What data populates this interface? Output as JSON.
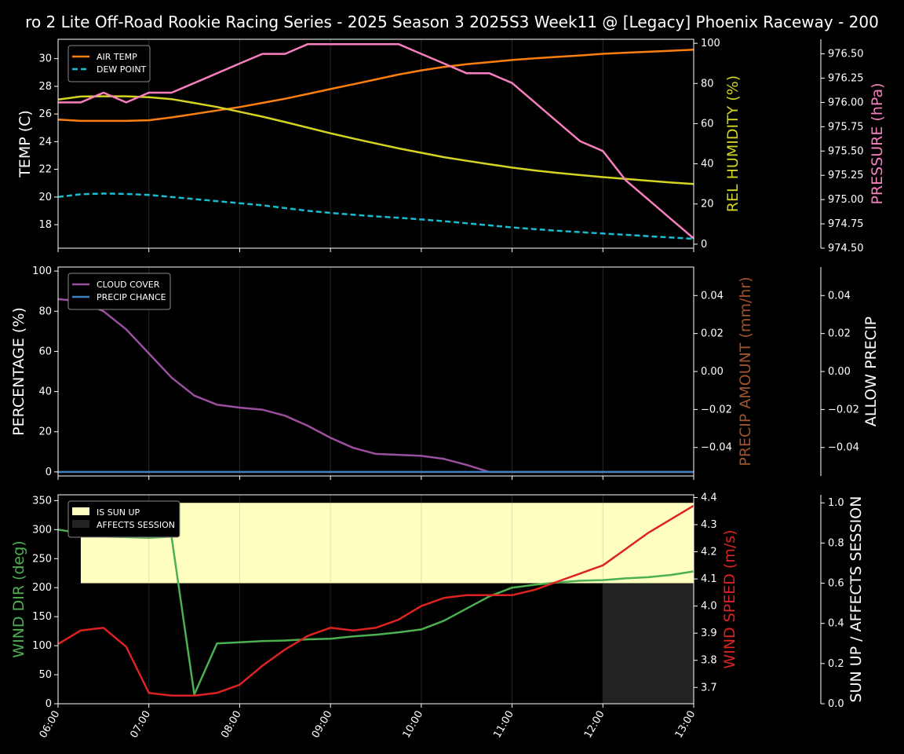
{
  "title": "ro 2 Lite Off-Road Rookie Racing Series - 2025 Season 3 2025S3 Week11 @ [Legacy] Phoenix Raceway - 200",
  "colors": {
    "air_temp": "#ff7f0e",
    "dew_point": "#17becf",
    "humidity": "#d4d422",
    "pressure": "#f77fbe",
    "cloud": "#9b4f9f",
    "precip_chance": "#3f7fbf",
    "precip_amount": "#a0522d",
    "wind_dir": "#4caf50",
    "wind_speed": "#dd2222",
    "sun_up": "#ffffc0",
    "affects": "#222222"
  },
  "x_ticks": [
    "06:00",
    "07:00",
    "08:00",
    "09:00",
    "10:00",
    "11:00",
    "12:00",
    "13:00"
  ],
  "chart_data": [
    {
      "type": "line",
      "name": "temperature_humidity_pressure",
      "x": [
        "06:00",
        "06:15",
        "06:30",
        "06:45",
        "07:00",
        "07:15",
        "07:30",
        "07:45",
        "08:00",
        "08:15",
        "08:30",
        "08:45",
        "09:00",
        "09:15",
        "09:30",
        "09:45",
        "10:00",
        "10:15",
        "10:30",
        "10:45",
        "11:00",
        "11:15",
        "11:30",
        "11:45",
        "12:00",
        "12:15",
        "12:30",
        "12:45",
        "13:00"
      ],
      "series": [
        {
          "name": "AIR TEMP",
          "axis": "left",
          "values": [
            25.6,
            25.5,
            25.5,
            25.5,
            25.55,
            25.75,
            26.0,
            26.25,
            26.5,
            26.8,
            27.1,
            27.45,
            27.8,
            28.15,
            28.5,
            28.85,
            29.15,
            29.4,
            29.6,
            29.75,
            29.9,
            30.02,
            30.13,
            30.23,
            30.35,
            30.43,
            30.5,
            30.57,
            30.65
          ]
        },
        {
          "name": "DEW POINT",
          "axis": "left",
          "values": [
            20.0,
            20.2,
            20.25,
            20.22,
            20.15,
            20.0,
            19.85,
            19.7,
            19.55,
            19.4,
            19.2,
            19.0,
            18.85,
            18.72,
            18.6,
            18.5,
            18.38,
            18.25,
            18.1,
            17.95,
            17.8,
            17.68,
            17.56,
            17.46,
            17.36,
            17.27,
            17.17,
            17.07,
            16.98
          ]
        },
        {
          "name": "REL HUMIDITY",
          "axis": "right1",
          "values": [
            72,
            73.5,
            73.6,
            73.6,
            73.2,
            72.2,
            70.3,
            68.3,
            65.9,
            63.5,
            60.8,
            58.0,
            55.2,
            52.6,
            50.1,
            47.7,
            45.5,
            43.3,
            41.5,
            39.8,
            38.1,
            36.7,
            35.5,
            34.4,
            33.4,
            32.5,
            31.6,
            30.7,
            30.0
          ]
        },
        {
          "name": "PRESSURE",
          "axis": "right2",
          "values": [
            976.0,
            976.0,
            976.1,
            976.0,
            976.1,
            976.1,
            976.2,
            976.3,
            976.4,
            976.5,
            976.5,
            976.6,
            976.6,
            976.6,
            976.6,
            976.6,
            976.5,
            976.4,
            976.3,
            976.3,
            976.2,
            976.0,
            975.8,
            975.6,
            975.5,
            975.2,
            975.0,
            974.8,
            974.6
          ]
        }
      ],
      "ylabel": "TEMP (C)",
      "ylim": [
        16.3,
        31.4
      ],
      "yticks": [
        18,
        20,
        22,
        24,
        26,
        28,
        30
      ],
      "y2label": "REL HUMIDITY (%)",
      "y2lim": [
        -2,
        102
      ],
      "y2ticks": [
        0,
        20,
        40,
        60,
        80,
        100
      ],
      "y3label": "PRESSURE (hPa)",
      "y3lim": [
        974.5,
        976.65
      ],
      "y3ticks": [
        "974.50",
        "974.75",
        "975.00",
        "975.25",
        "975.50",
        "975.75",
        "976.00",
        "976.25",
        "976.50"
      ],
      "legend": [
        "AIR TEMP",
        "DEW POINT"
      ],
      "legend_position": "top-left",
      "grid": "vertical"
    },
    {
      "type": "line",
      "name": "cloud_precip",
      "x": [
        "06:00",
        "06:15",
        "06:30",
        "06:45",
        "07:00",
        "07:15",
        "07:30",
        "07:45",
        "08:00",
        "08:15",
        "08:30",
        "08:45",
        "09:00",
        "09:15",
        "09:30",
        "09:45",
        "10:00",
        "10:15",
        "10:30",
        "10:45",
        "11:00",
        "11:15",
        "11:30",
        "11:45",
        "12:00",
        "12:15",
        "12:30",
        "12:45",
        "13:00"
      ],
      "series": [
        {
          "name": "CLOUD COVER",
          "values": [
            86,
            85,
            80,
            71,
            59,
            47,
            38,
            33.5,
            32,
            31,
            28,
            23,
            17,
            12,
            9,
            8.5,
            8,
            6.5,
            3.5,
            0,
            0,
            0,
            0,
            0,
            0,
            0,
            0,
            0,
            0
          ]
        },
        {
          "name": "PRECIP CHANCE",
          "values": [
            0,
            0,
            0,
            0,
            0,
            0,
            0,
            0,
            0,
            0,
            0,
            0,
            0,
            0,
            0,
            0,
            0,
            0,
            0,
            0,
            0,
            0,
            0,
            0,
            0,
            0,
            0,
            0,
            0
          ]
        }
      ],
      "ylabel": "PERCENTAGE (%)",
      "ylim": [
        -2,
        102
      ],
      "yticks": [
        0,
        20,
        40,
        60,
        80,
        100
      ],
      "y2label": "PRECIP AMOUNT (mm/hr)",
      "y2lim": [
        -0.055,
        0.055
      ],
      "y2ticks": [
        "−0.04",
        "−0.02",
        "0.00",
        "0.02",
        "0.04"
      ],
      "y3label": "ALLOW PRECIP",
      "y3lim": [
        -0.055,
        0.055
      ],
      "y3ticks": [
        "−0.04",
        "−0.02",
        "0.00",
        "0.02",
        "0.04"
      ],
      "legend": [
        "CLOUD COVER",
        "PRECIP CHANCE"
      ],
      "legend_position": "top-left",
      "grid": "vertical"
    },
    {
      "type": "line",
      "name": "wind_sun",
      "x": [
        "06:00",
        "06:15",
        "06:30",
        "06:45",
        "07:00",
        "07:15",
        "07:30",
        "07:45",
        "08:00",
        "08:15",
        "08:30",
        "08:45",
        "09:00",
        "09:15",
        "09:30",
        "09:45",
        "10:00",
        "10:15",
        "10:30",
        "10:45",
        "11:00",
        "11:15",
        "11:30",
        "11:45",
        "12:00",
        "12:15",
        "12:30",
        "12:45",
        "13:00"
      ],
      "series": [
        {
          "name": "WIND DIR",
          "axis": "left",
          "values": [
            300,
            294,
            288,
            287,
            286,
            288,
            16,
            104,
            106,
            108,
            109,
            111,
            112,
            116,
            119,
            123,
            128,
            143,
            164,
            185,
            200,
            205,
            209,
            212,
            213,
            216,
            218,
            222,
            228
          ]
        },
        {
          "name": "WIND SPEED",
          "axis": "right1",
          "values": [
            3.86,
            3.91,
            3.92,
            3.85,
            3.68,
            3.67,
            3.67,
            3.68,
            3.71,
            3.78,
            3.84,
            3.89,
            3.92,
            3.91,
            3.92,
            3.95,
            4.0,
            4.03,
            4.04,
            4.04,
            4.04,
            4.06,
            4.09,
            4.12,
            4.15,
            4.21,
            4.27,
            4.32,
            4.37
          ]
        },
        {
          "name": "IS SUN UP",
          "axis": "right2",
          "values": [
            0,
            1,
            1,
            1,
            1,
            1,
            1,
            1,
            1,
            1,
            1,
            1,
            1,
            1,
            1,
            1,
            1,
            1,
            1,
            1,
            1,
            1,
            1,
            1,
            1,
            1,
            1,
            1,
            1
          ]
        },
        {
          "name": "AFFECTS SESSION",
          "axis": "right2",
          "values": [
            0,
            0,
            0,
            0,
            0,
            0,
            0,
            0,
            0,
            0,
            0,
            0,
            0,
            0,
            0,
            0,
            0,
            0,
            0,
            0,
            0,
            0,
            0,
            0,
            1,
            1,
            1,
            1,
            1
          ]
        }
      ],
      "ylabel": "WIND DIR (deg)",
      "ylim": [
        0,
        360
      ],
      "yticks": [
        0,
        50,
        100,
        150,
        200,
        250,
        300,
        350
      ],
      "y2label": "WIND SPEED (m/s)",
      "y2lim": [
        3.64,
        4.41
      ],
      "y2ticks": [
        "3.7",
        "3.8",
        "3.9",
        "4.0",
        "4.1",
        "4.2",
        "4.3",
        "4.4"
      ],
      "y3label": "SUN UP / AFFECTS SESSION",
      "y3lim": [
        0,
        1.04
      ],
      "y3ticks": [
        "0.0",
        "0.2",
        "0.4",
        "0.6",
        "0.8",
        "1.0"
      ],
      "legend": [
        "IS SUN UP",
        "AFFECTS SESSION"
      ],
      "legend_position": "top-left",
      "grid": "vertical"
    }
  ]
}
